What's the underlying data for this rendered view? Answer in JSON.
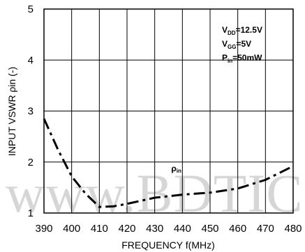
{
  "chart_data": {
    "type": "line",
    "xlabel": "FREQUENCY f(MHz)",
    "ylabel": "INPUT VSWR ρin (-)",
    "xlim": [
      390,
      480
    ],
    "ylim": [
      1,
      5
    ],
    "x_ticks": [
      390,
      400,
      410,
      420,
      430,
      440,
      450,
      460,
      470,
      480
    ],
    "y_ticks": [
      1,
      2,
      3,
      4,
      5
    ],
    "grid": true,
    "series": [
      {
        "name": "ρin",
        "style": "dash-dot",
        "color": "#000000",
        "x": [
          390,
          395,
          400,
          405,
          410,
          415,
          420,
          430,
          440,
          450,
          460,
          470,
          480
        ],
        "y": [
          2.85,
          2.25,
          1.72,
          1.38,
          1.12,
          1.13,
          1.18,
          1.3,
          1.36,
          1.4,
          1.48,
          1.65,
          1.92
        ]
      }
    ],
    "series_label": {
      "base": "ρ",
      "sub": "in",
      "x": 440,
      "y": 1.9
    },
    "conditions": [
      {
        "base": "V",
        "sub": "DD",
        "value": "=12.5V"
      },
      {
        "base": "V",
        "sub": "GG",
        "value": "=5V"
      },
      {
        "base": "P",
        "sub": "in",
        "value": "=50mW"
      }
    ]
  },
  "watermark": "www.BDTIC.com"
}
